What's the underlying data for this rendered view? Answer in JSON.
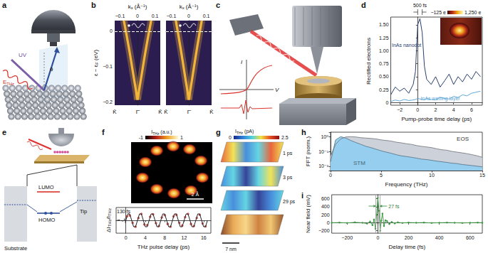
{
  "panel_labels": [
    "a",
    "b",
    "c",
    "d",
    "e",
    "f",
    "g",
    "h",
    "i"
  ],
  "diagrams": {
    "a": {
      "beam": "UV",
      "field": [
        {
          "text": "E"
        },
        {
          "text": "THz",
          "sub": true
        }
      ],
      "angle": "θ"
    },
    "c": {
      "current": "I",
      "voltage": "V"
    },
    "e": {
      "lumo": "LUMO",
      "homo": "HOMO",
      "substrate": "Substrate",
      "tip": "Tip"
    },
    "f_map": {
      "colorbar_title": [
        {
          "text": "I"
        },
        {
          "text": "THz",
          "sub": true
        },
        {
          "text": " (a.u.)"
        }
      ],
      "colorbar_ticks": [
        -1,
        1
      ],
      "scale_bar": "2 Å"
    },
    "g": {
      "colorbar_title": [
        {
          "text": "I"
        },
        {
          "text": "THz",
          "sub": true
        },
        {
          "text": " (pA)"
        }
      ],
      "colorbar_ticks": [
        0,
        2.5
      ],
      "frames": [
        "1 ps",
        "3 ps",
        "29 ps"
      ],
      "scale_bar": "7 nm"
    }
  },
  "chart_data": [
    {
      "type": "dispersion",
      "panel": "b",
      "x_label": [
        {
          "text": "k"
        },
        {
          "text": "x",
          "sub": true
        },
        {
          "text": " (Å⁻¹)"
        }
      ],
      "y_label": [
        {
          "text": "ε − ε"
        },
        {
          "text": "F",
          "sub": true
        },
        {
          "text": " (eV)"
        }
      ],
      "xlim": [
        -0.13,
        0.13
      ],
      "xticks": [
        {
          "value": -0.1,
          "label": "−0.1"
        },
        0,
        0.1
      ],
      "ylim": [
        -0.21,
        0.03
      ],
      "yticks": [
        0,
        {
          "value": -0.1,
          "label": "−0.1"
        },
        {
          "value": -0.2,
          "label": "−0.2"
        }
      ],
      "categories": [
        "K̄",
        "Γ̄",
        "K̄"
      ],
      "fermi_level": 0,
      "color": "#f2b53a",
      "frames": [
        [
          {
            "x": [
              -0.078,
              -0.05,
              -0.025,
              0
            ],
            "values": [
              0.03,
              -0.045,
              -0.12,
              -0.195
            ]
          },
          {
            "x": [
              0,
              0.025,
              0.05,
              0.078
            ],
            "values": [
              -0.195,
              -0.12,
              -0.045,
              0.03
            ]
          }
        ],
        [
          {
            "x": [
              -0.074,
              -0.048,
              -0.024,
              0
            ],
            "values": [
              0.03,
              -0.045,
              -0.12,
              -0.195
            ]
          },
          {
            "x": [
              0,
              0.024,
              0.048,
              0.074
            ],
            "values": [
              -0.195,
              -0.12,
              -0.045,
              0.03
            ]
          }
        ]
      ]
    },
    {
      "type": "line",
      "panel": "d",
      "x_label": "Pump-probe time delay (ps)",
      "y_label": "Rectified electrons",
      "x": [
        -3,
        -2.5,
        -2,
        -1.5,
        -1,
        -0.5,
        -0.25,
        0,
        0.25,
        0.5,
        0.75,
        1,
        1.5,
        2,
        2.5,
        3,
        3.5,
        4,
        4.5,
        5,
        5.5,
        6,
        6.5,
        7
      ],
      "series": [
        {
          "name": "InAs nanodot",
          "color": "#27406f",
          "values": [
            0.15,
            0.3,
            0.22,
            0.28,
            0.18,
            0.35,
            0.6,
            1.5,
            1.62,
            1.35,
            0.7,
            0.45,
            0.35,
            0.5,
            0.3,
            0.42,
            0.55,
            0.35,
            0.5,
            0.4,
            0.55,
            0.45,
            0.6,
            0.5
          ]
        },
        {
          "name": "InAs wetting layer",
          "color": "#5fa8d8",
          "values": [
            0.02,
            0.05,
            0.03,
            0.06,
            0.04,
            0.05,
            0.06,
            0.08,
            0.07,
            0.06,
            0.05,
            0.08,
            0.06,
            0.05,
            0.1,
            0.08,
            0.07,
            0.12,
            0.1,
            0.15,
            0.13,
            0.18,
            0.2,
            0.22
          ]
        }
      ],
      "xlim": [
        -3,
        7.2
      ],
      "xticks": [
        {
          "value": -2,
          "label": "−2"
        },
        0,
        2,
        4,
        6
      ],
      "ylim": [
        -0.05,
        1.65
      ],
      "yticks": [
        0,
        0.25,
        {
          "value": 0.5,
          "label": "0.50"
        },
        0.75,
        {
          "value": 1,
          "label": "1.00"
        },
        1.25,
        {
          "value": 1.5,
          "label": "1.50"
        }
      ],
      "pulse_window": [
        0,
        0.5
      ],
      "annotations": {
        "pulse_width": "500 fs"
      },
      "inset_colorbar_ticks": [
        {
          "value": -125,
          "label": "−125 e"
        },
        {
          "value": 1250,
          "label": "1,250 e"
        }
      ]
    },
    {
      "type": "line",
      "panel": "f",
      "x_label": "THz pulse delay (ps)",
      "y_label": [
        {
          "text": "ΔI"
        },
        {
          "text": "THz",
          "sub": true
        },
        {
          "text": "/I"
        },
        {
          "text": "THz",
          "sub": true
        }
      ],
      "xlim": [
        -2,
        17.5
      ],
      "xticks": [
        0,
        4,
        8,
        12,
        16
      ],
      "ylim": [
        -1.6,
        1.6
      ],
      "tick_labels": "x",
      "series": [
        {
          "type": "line",
          "color": "#222222",
          "line_style": "dashed",
          "x": [
            -1.8,
            -1.2,
            -0.6,
            -0.3,
            -0.1,
            0
          ],
          "values": [
            0,
            0.05,
            -0.1,
            0.2,
            -0.3,
            0
          ]
        },
        {
          "type": "line",
          "color": "#222222",
          "line_style": "solid",
          "x": [
            0,
            0.4,
            0.8,
            1.2,
            1.6,
            2,
            2.4,
            2.8,
            3.2,
            3.6,
            4,
            4.4,
            4.8,
            5.2,
            5.6,
            6,
            6.4,
            6.8,
            7.2,
            7.6,
            8,
            8.4,
            8.8,
            9.2,
            9.6,
            10,
            10.4,
            10.8,
            11.2,
            11.6,
            12,
            12.4,
            12.8,
            13.2,
            13.6,
            14,
            14.4,
            14.8,
            15.2,
            15.6,
            16,
            16.4,
            16.8
          ],
          "values": [
            0,
            0.8,
            0.8,
            0,
            -0.8,
            -0.8,
            0,
            0.8,
            0.8,
            0,
            -0.8,
            -0.8,
            0,
            0.8,
            0.8,
            0,
            -0.8,
            -0.8,
            0,
            0.8,
            0.8,
            0,
            -0.8,
            -0.8,
            0,
            0.8,
            0.8,
            0,
            -0.8,
            -0.8,
            0,
            0.8,
            0.8,
            0,
            -0.8,
            -0.8,
            0,
            0.8,
            0.8,
            0,
            -0.8,
            -0.8,
            0
          ]
        },
        {
          "type": "scatter",
          "color": "#c9403a",
          "marker": "circle",
          "x": [
            0.2,
            0.8,
            1.4,
            2,
            2.6,
            3.2,
            3.8,
            4.4,
            5,
            5.6,
            6.2,
            6.8,
            7.4,
            8,
            8.6,
            9.2,
            9.8,
            10.4,
            11,
            11.6,
            12.2,
            12.8,
            13.4,
            14,
            14.6,
            15.2,
            15.8,
            16.4
          ],
          "values": [
            0.5,
            0.6,
            -0.3,
            -0.8,
            0.3,
            0.8,
            -0.5,
            -0.6,
            0.45,
            0.75,
            -0.35,
            -0.7,
            0.35,
            0.65,
            -0.45,
            -0.8,
            0.5,
            0.7,
            -0.3,
            -0.65,
            0.4,
            0.8,
            -0.45,
            -0.7,
            0.3,
            0.7,
            -0.4,
            -0.75
          ]
        }
      ],
      "annotations": {
        "pulse_width": "130 fs"
      }
    },
    {
      "type": "area",
      "panel": "h",
      "log": "y",
      "x_label": "Frequency (THz)",
      "y_label": "FFT (norm.)",
      "xlim": [
        0,
        15
      ],
      "xticks": [
        0,
        5,
        10,
        15
      ],
      "ylim": [
        0.005,
        2
      ],
      "yticks": [
        {
          "value": 0.01,
          "label": "10⁻²"
        },
        {
          "value": 0.1,
          "label": "10⁻¹"
        },
        {
          "value": 1,
          "label": "10⁰"
        }
      ],
      "x": [
        0,
        0.5,
        1,
        1.5,
        2,
        2.5,
        3,
        3.5,
        4,
        4.5,
        5,
        5.5,
        6,
        6.5,
        7,
        7.5,
        8,
        8.5,
        9,
        9.5,
        10,
        10.5,
        11,
        11.5,
        12,
        12.5,
        13,
        13.5,
        14,
        14.5,
        15
      ],
      "series": [
        {
          "name": "EOS",
          "color": "#c8ccd6",
          "values": [
            0.05,
            0.3,
            0.7,
            0.95,
            1.0,
            0.95,
            0.85,
            0.8,
            0.75,
            0.7,
            0.6,
            0.55,
            0.5,
            0.42,
            0.38,
            0.33,
            0.3,
            0.25,
            0.22,
            0.2,
            0.18,
            0.15,
            0.13,
            0.12,
            0.1,
            0.09,
            0.08,
            0.07,
            0.06,
            0.05,
            0.04
          ]
        },
        {
          "name": "STM",
          "color": "#8fcdf0",
          "values": [
            0.02,
            0.6,
            1.0,
            0.8,
            0.55,
            0.4,
            0.3,
            0.22,
            0.18,
            0.14,
            0.11,
            0.09,
            0.075,
            0.06,
            0.05,
            0.045,
            0.04,
            0.035,
            0.03,
            0.028,
            0.025,
            0.022,
            0.02,
            0.018,
            0.016,
            0.015,
            0.013,
            0.012,
            0.011,
            0.01,
            0.009
          ]
        }
      ]
    },
    {
      "type": "line",
      "panel": "i",
      "x_label": "Delay time (fs)",
      "y_label": "Near field (mV)",
      "xlim": [
        -300,
        680
      ],
      "xticks": [
        {
          "value": -200,
          "label": "−200"
        },
        0,
        200,
        400,
        600
      ],
      "ylim": [
        -260,
        700
      ],
      "yticks": [
        {
          "value": -200,
          "label": "−200"
        },
        0,
        200,
        400,
        600
      ],
      "x": [
        -300,
        -250,
        -200,
        -150,
        -100,
        -70,
        -50,
        -35,
        -25,
        -15,
        -8,
        0,
        8,
        15,
        22,
        30,
        40,
        50,
        60,
        75,
        90,
        110,
        130,
        160,
        200,
        250,
        300,
        350,
        400,
        450,
        500,
        550,
        600,
        650,
        680
      ],
      "values": [
        0,
        5,
        -5,
        10,
        0,
        -20,
        30,
        -60,
        80,
        -150,
        200,
        620,
        300,
        -200,
        50,
        230,
        -80,
        60,
        40,
        -30,
        20,
        -15,
        10,
        -5,
        5,
        0,
        5,
        -5,
        0,
        5,
        0,
        -5,
        0,
        5,
        0
      ],
      "color": "#3f9a45",
      "marker": "circle",
      "fwhm": [
        -13.5,
        13.5
      ],
      "annotations": {
        "pulse_width": "27 fs"
      }
    }
  ]
}
